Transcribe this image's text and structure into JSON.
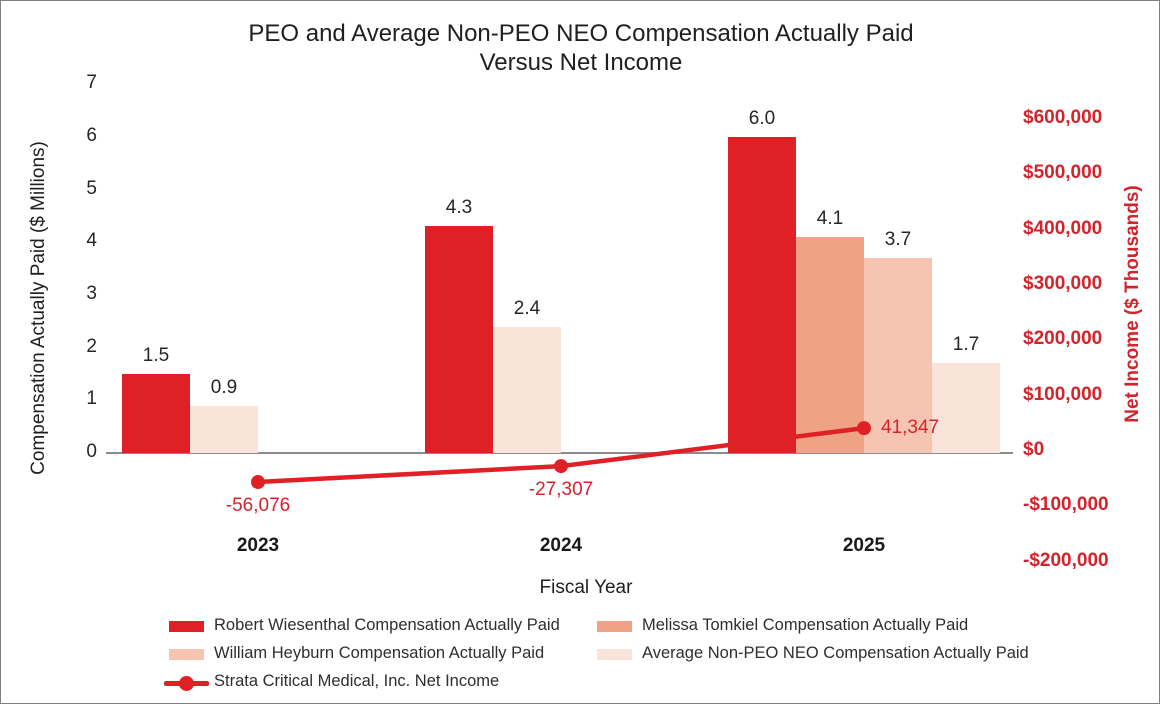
{
  "chart_data": {
    "type": "bar+line",
    "title_line1": "PEO and Average Non-PEO NEO Compensation Actually Paid",
    "title_line2": "Versus Net Income",
    "xlabel": "Fiscal Year",
    "categories": [
      "2023",
      "2024",
      "2025"
    ],
    "bar_series": [
      {
        "name": "Robert Wiesenthal Compensation Actually Paid",
        "color": "#df2025",
        "values": [
          1.5,
          4.3,
          6.0
        ],
        "labels": [
          "1.5",
          "4.3",
          "6.0"
        ]
      },
      {
        "name": "Melissa Tomkiel Compensation Actually Paid",
        "color": "#f0a286",
        "values": [
          null,
          null,
          4.1
        ],
        "labels": [
          null,
          null,
          "4.1"
        ]
      },
      {
        "name": "William Heyburn Compensation Actually Paid",
        "color": "#f5c5b2",
        "values": [
          null,
          null,
          3.7
        ],
        "labels": [
          null,
          null,
          "3.7"
        ]
      },
      {
        "name": "Average Non-PEO NEO Compensation Actually Paid",
        "color": "#fae3d8",
        "values": [
          0.9,
          2.4,
          1.7
        ],
        "labels": [
          "0.9",
          "2.4",
          "1.7"
        ]
      }
    ],
    "line_series": {
      "name": "Strata Critical Medical, Inc. Net Income",
      "color": "#df2025",
      "values": [
        -56076,
        -27307,
        41347
      ],
      "labels": [
        "-56,076",
        "-27,307",
        "41,347"
      ]
    },
    "left_axis": {
      "label": "Compensation Actually Paid ($ Millions)",
      "ticks": [
        "0",
        "1",
        "2",
        "3",
        "4",
        "5",
        "6",
        "7"
      ],
      "min": 0,
      "max": 7
    },
    "right_axis": {
      "label": "Net Income ($ Thousands)",
      "ticks": [
        "$600,000",
        "$500,000",
        "$400,000",
        "$300,000",
        "$200,000",
        "$100,000",
        "$0",
        "-$100,000",
        "-$200,000"
      ],
      "tick_values": [
        600000,
        500000,
        400000,
        300000,
        200000,
        100000,
        0,
        -100000,
        -200000
      ],
      "min": -200000,
      "max": 600000
    },
    "legend_position": "bottom",
    "grid": "off",
    "colors": {
      "accent_red": "#df2025",
      "red_text": "#d5232b",
      "axis_line": "#8c8c8c",
      "text_dark": "#1f1f1f"
    }
  }
}
